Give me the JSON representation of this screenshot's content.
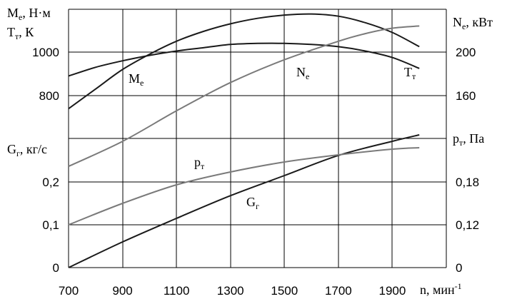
{
  "chart_data": {
    "type": "line",
    "x_axis": {
      "label_main": "n, мин",
      "label_sup": "-1",
      "ticks": [
        700,
        900,
        1100,
        1300,
        1500,
        1700,
        1900
      ],
      "range": [
        700,
        1900
      ]
    },
    "axes_labels": {
      "me_main": "M",
      "me_sub": "e",
      "me_unit": ", Н·м",
      "tt_main": "T",
      "tt_sub": "т",
      "tt_unit": ", К",
      "ne_main": "N",
      "ne_sub": "e",
      "ne_unit": ", кВт",
      "gg_main": "G",
      "gg_sub": "г",
      "gg_unit": ", кг/с",
      "pt_main": "p",
      "pt_sub": "т",
      "pt_unit": ", Па"
    },
    "left_upper_ticks": [
      "1000",
      "800"
    ],
    "right_upper_ticks": [
      "200",
      "160"
    ],
    "left_lower_ticks": [
      "0,2",
      "0,1",
      "0"
    ],
    "right_lower_ticks": [
      "0,18",
      "0,12",
      "0"
    ],
    "series": [
      {
        "name": "Me",
        "label_main": "M",
        "label_sub": "e",
        "color": "#1a1a1a",
        "panel": "upper",
        "x": [
          700,
          800,
          900,
          1000,
          1100,
          1200,
          1300,
          1400,
          1500,
          1600,
          1700,
          1800,
          1900,
          2000
        ],
        "y": [
          740,
          830,
          920,
          990,
          1050,
          1095,
          1130,
          1155,
          1170,
          1175,
          1165,
          1135,
          1090,
          1025
        ]
      },
      {
        "name": "Tt",
        "label_main": "T",
        "label_sub": "т",
        "color": "#1a1a1a",
        "panel": "upper",
        "x": [
          700,
          800,
          900,
          1000,
          1100,
          1200,
          1300,
          1400,
          1500,
          1600,
          1700,
          1800,
          1900,
          2000
        ],
        "y": [
          890,
          930,
          960,
          985,
          1005,
          1020,
          1035,
          1040,
          1040,
          1035,
          1025,
          1005,
          975,
          925
        ]
      },
      {
        "name": "Ne",
        "label_main": "N",
        "label_sub": "e",
        "color": "#7a7a7a",
        "panel": "upper-right",
        "x": [
          700,
          900,
          1100,
          1300,
          1500,
          1700,
          1800,
          1900,
          2000
        ],
        "y": [
          95,
          118,
          146,
          172,
          193,
          210,
          217,
          222,
          224
        ]
      },
      {
        "name": "Gg",
        "label_main": "G",
        "label_sub": "г",
        "color": "#1a1a1a",
        "panel": "lower-left",
        "x": [
          700,
          900,
          1100,
          1300,
          1500,
          1700,
          1900,
          2000
        ],
        "y": [
          0.0,
          0.06,
          0.115,
          0.168,
          0.215,
          0.262,
          0.295,
          0.31
        ]
      },
      {
        "name": "pt",
        "label_main": "p",
        "label_sub": "т",
        "color": "#7a7a7a",
        "panel": "lower-right",
        "x": [
          700,
          900,
          1100,
          1300,
          1500,
          1700,
          1900,
          2000
        ],
        "y": [
          0.12,
          0.15,
          0.176,
          0.194,
          0.208,
          0.218,
          0.226,
          0.228
        ]
      }
    ]
  }
}
